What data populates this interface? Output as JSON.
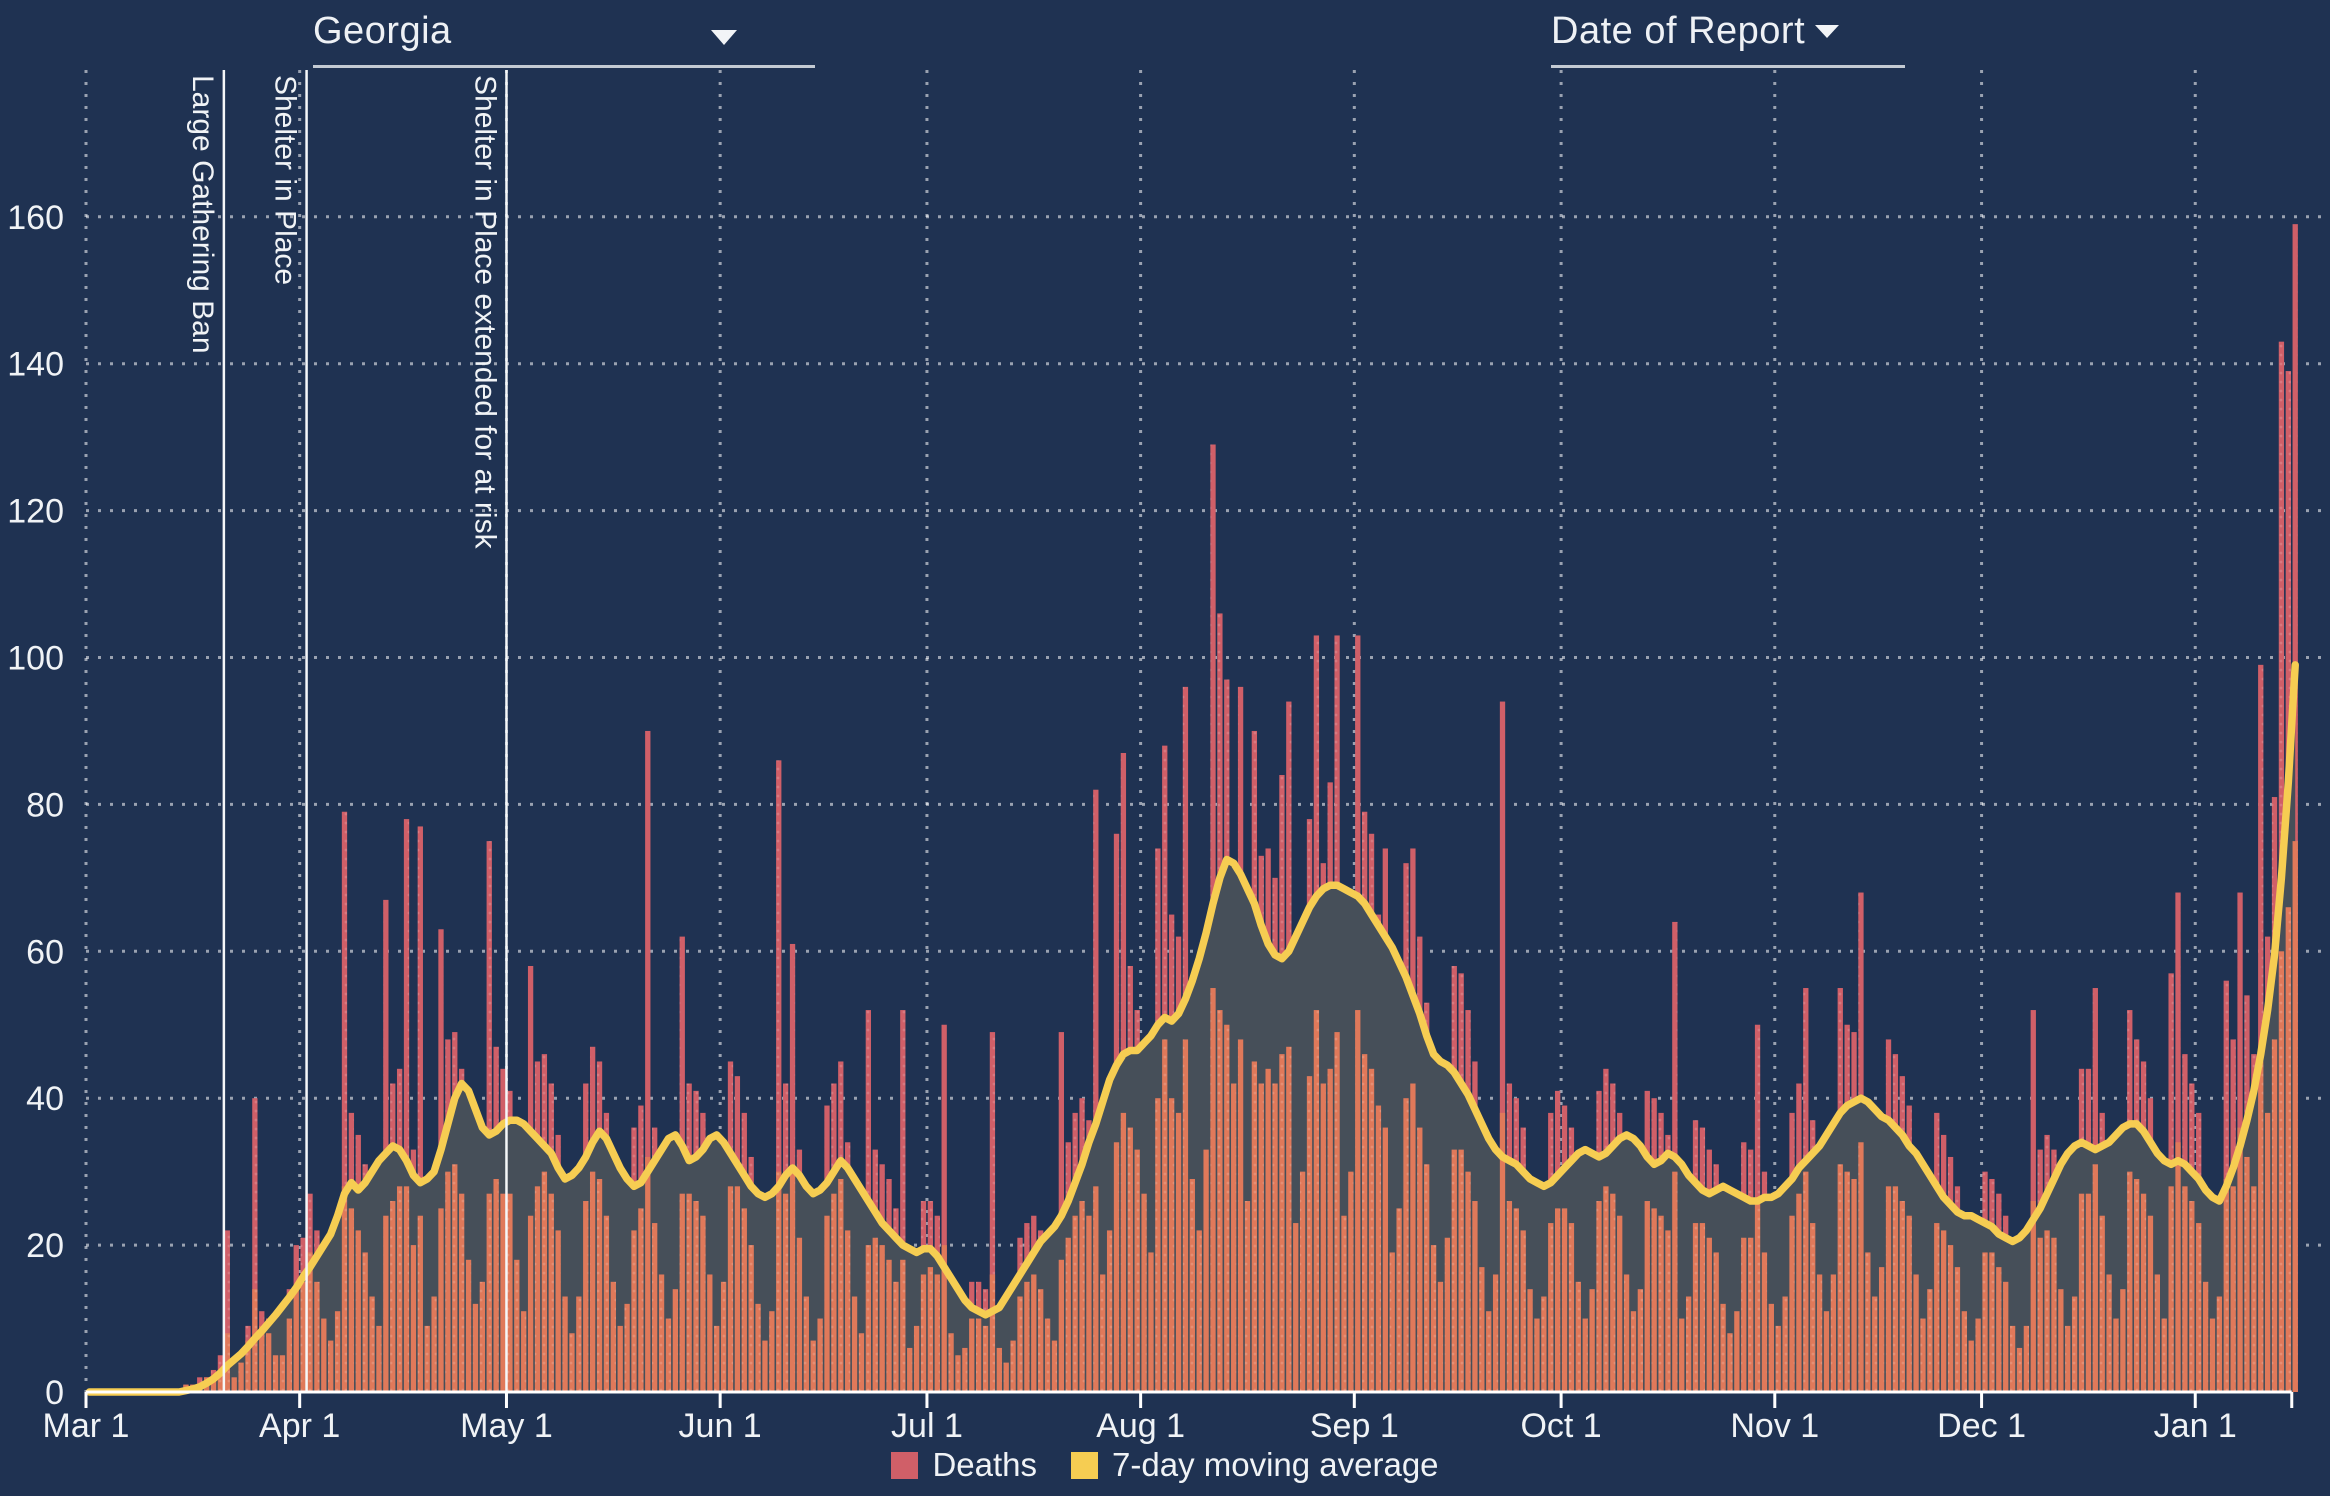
{
  "header": {
    "region_selector": {
      "value": "Georgia"
    },
    "sort_selector": {
      "label": "Date of Report"
    }
  },
  "legend": [
    {
      "label": "Deaths",
      "color": "#d05f68"
    },
    {
      "label": "7-day moving average",
      "color": "#f6cd52"
    }
  ],
  "colors": {
    "background": "#1f3252",
    "deaths_bar": "#d05f68",
    "foreground_bar": "#e0795a",
    "ma_line": "#f6cd52",
    "ma_area": "#464f59",
    "gridline": "rgba(255,255,255,0.55)",
    "event_line": "#f5f7f9",
    "text": "#f0f3f6"
  },
  "chart_data": {
    "type": "bar",
    "title": "",
    "xlabel": "",
    "ylabel": "",
    "start_date": "2020-03-01",
    "end_date": "2021-01-15",
    "grid": true,
    "legend_position": "bottom",
    "ylim": [
      0,
      180
    ],
    "y_ticks": [
      0,
      20,
      40,
      60,
      80,
      100,
      120,
      140,
      160
    ],
    "x_ticks": [
      {
        "label": "Mar 1",
        "day": 0
      },
      {
        "label": "Apr 1",
        "day": 31
      },
      {
        "label": "May 1",
        "day": 61
      },
      {
        "label": "Jun 1",
        "day": 92
      },
      {
        "label": "Jul 1",
        "day": 122
      },
      {
        "label": "Aug 1",
        "day": 153
      },
      {
        "label": "Sep 1",
        "day": 184
      },
      {
        "label": "Oct 1",
        "day": 214
      },
      {
        "label": "Nov 1",
        "day": 245
      },
      {
        "label": "Dec 1",
        "day": 275
      },
      {
        "label": "Jan 1",
        "day": 306
      }
    ],
    "x_axis_end_day": 320,
    "annotations": [
      {
        "label": "Large Gathering Ban",
        "day": 20
      },
      {
        "label": "Shelter in Place",
        "day": 32
      },
      {
        "label": "Shelter in Place extended for at risk",
        "day": 61
      }
    ],
    "series": [
      {
        "name": "Deaths",
        "type": "bar",
        "color": "#d05f68",
        "values": [
          0,
          0,
          0,
          0,
          0,
          0,
          0,
          0,
          0,
          0,
          0,
          0,
          0,
          0,
          1,
          1,
          2,
          2,
          3,
          5,
          22,
          3,
          5,
          9,
          40,
          11,
          10,
          7,
          6,
          14,
          20,
          21,
          27,
          22,
          16,
          12,
          17,
          79,
          38,
          35,
          31,
          24,
          18,
          67,
          42,
          44,
          78,
          33,
          77,
          15,
          21,
          63,
          48,
          49,
          44,
          32,
          22,
          26,
          75,
          47,
          44,
          41,
          28,
          19,
          58,
          45,
          46,
          42,
          35,
          22,
          15,
          22,
          42,
          47,
          45,
          38,
          25,
          16,
          20,
          36,
          39,
          90,
          36,
          26,
          18,
          24,
          62,
          42,
          41,
          38,
          27,
          17,
          24,
          45,
          43,
          38,
          32,
          20,
          13,
          18,
          86,
          42,
          61,
          33,
          21,
          13,
          17,
          39,
          42,
          45,
          34,
          22,
          14,
          52,
          33,
          31,
          29,
          25,
          52,
          10,
          14,
          26,
          26,
          24,
          50,
          12,
          8,
          10,
          15,
          15,
          14,
          49,
          9,
          7,
          11,
          21,
          23,
          24,
          22,
          16,
          11,
          49,
          34,
          38,
          40,
          37,
          82,
          25,
          34,
          76,
          87,
          58,
          52,
          41,
          30,
          74,
          88,
          65,
          62,
          96,
          46,
          36,
          55,
          129,
          106,
          97,
          71,
          96,
          44,
          90,
          73,
          74,
          70,
          84,
          94,
          39,
          52,
          78,
          103,
          72,
          83,
          103,
          41,
          54,
          103,
          79,
          76,
          65,
          74,
          32,
          41,
          72,
          74,
          62,
          53,
          34,
          25,
          35,
          58,
          57,
          52,
          45,
          28,
          19,
          26,
          94,
          42,
          40,
          36,
          23,
          16,
          22,
          38,
          41,
          39,
          36,
          25,
          17,
          23,
          41,
          44,
          42,
          38,
          26,
          18,
          24,
          41,
          40,
          38,
          35,
          64,
          16,
          21,
          37,
          36,
          33,
          31,
          20,
          14,
          19,
          34,
          33,
          50,
          30,
          20,
          15,
          21,
          38,
          42,
          55,
          37,
          26,
          18,
          26,
          55,
          50,
          49,
          68,
          31,
          21,
          28,
          48,
          46,
          43,
          39,
          26,
          17,
          23,
          38,
          35,
          32,
          28,
          18,
          12,
          17,
          30,
          29,
          27,
          24,
          15,
          10,
          15,
          52,
          33,
          35,
          33,
          22,
          15,
          22,
          44,
          44,
          55,
          38,
          25,
          17,
          24,
          52,
          48,
          45,
          40,
          26,
          17,
          57,
          68,
          46,
          42,
          38,
          25,
          16,
          22,
          56,
          48,
          68,
          54,
          46,
          99,
          62,
          81,
          143,
          139,
          159
        ]
      },
      {
        "name": "Deaths (lower foreground bar segments)",
        "type": "bar",
        "color": "#e0795a",
        "values": [
          0,
          0,
          0,
          0,
          0,
          0,
          0,
          0,
          0,
          0,
          0,
          0,
          0,
          0,
          1,
          1,
          1,
          2,
          2,
          3,
          8,
          2,
          4,
          7,
          14,
          9,
          8,
          5,
          5,
          10,
          14,
          15,
          19,
          15,
          10,
          7,
          11,
          28,
          25,
          22,
          19,
          13,
          9,
          24,
          26,
          28,
          28,
          20,
          24,
          9,
          13,
          25,
          30,
          31,
          27,
          18,
          12,
          15,
          27,
          29,
          27,
          27,
          18,
          11,
          24,
          28,
          30,
          27,
          22,
          13,
          8,
          13,
          26,
          30,
          29,
          24,
          15,
          9,
          12,
          22,
          25,
          32,
          23,
          16,
          10,
          14,
          27,
          27,
          26,
          24,
          16,
          9,
          15,
          28,
          28,
          25,
          20,
          12,
          7,
          11,
          30,
          27,
          30,
          21,
          13,
          7,
          10,
          24,
          27,
          29,
          22,
          13,
          8,
          20,
          21,
          20,
          18,
          15,
          18,
          6,
          9,
          16,
          17,
          16,
          20,
          8,
          5,
          6,
          10,
          10,
          9,
          16,
          6,
          4,
          7,
          13,
          15,
          16,
          14,
          10,
          7,
          18,
          21,
          24,
          26,
          24,
          28,
          16,
          22,
          34,
          38,
          36,
          33,
          27,
          19,
          40,
          48,
          40,
          38,
          48,
          29,
          22,
          33,
          55,
          52,
          50,
          42,
          48,
          26,
          45,
          42,
          44,
          42,
          46,
          47,
          23,
          30,
          43,
          52,
          42,
          44,
          49,
          24,
          30,
          52,
          46,
          44,
          39,
          36,
          19,
          25,
          40,
          42,
          36,
          31,
          20,
          15,
          21,
          33,
          33,
          30,
          26,
          17,
          11,
          16,
          38,
          26,
          25,
          22,
          14,
          10,
          13,
          23,
          25,
          25,
          23,
          15,
          10,
          14,
          26,
          28,
          27,
          24,
          16,
          11,
          14,
          26,
          25,
          24,
          22,
          30,
          10,
          13,
          23,
          23,
          21,
          19,
          12,
          8,
          11,
          21,
          21,
          26,
          19,
          12,
          9,
          13,
          24,
          27,
          30,
          23,
          16,
          11,
          16,
          31,
          30,
          29,
          34,
          19,
          13,
          17,
          28,
          28,
          26,
          24,
          16,
          10,
          14,
          23,
          22,
          20,
          17,
          11,
          7,
          10,
          19,
          19,
          17,
          15,
          9,
          6,
          9,
          26,
          21,
          22,
          21,
          14,
          9,
          13,
          27,
          27,
          31,
          24,
          16,
          10,
          14,
          30,
          29,
          27,
          24,
          16,
          10,
          28,
          34,
          28,
          26,
          23,
          15,
          10,
          13,
          29,
          28,
          36,
          32,
          28,
          45,
          38,
          48,
          60,
          66,
          75
        ]
      },
      {
        "name": "7-day moving average",
        "type": "line",
        "color": "#f6cd52",
        "values": [
          0,
          0,
          0,
          0,
          0,
          0,
          0,
          0,
          0,
          0,
          0,
          0,
          0,
          0,
          0.2,
          0.4,
          0.7,
          1.2,
          1.8,
          2.6,
          3.6,
          4.4,
          5.2,
          6.2,
          7.3,
          8.3,
          9.4,
          10.5,
          11.7,
          12.9,
          14.2,
          15.7,
          17,
          18.5,
          20,
          21.5,
          24,
          27,
          28.5,
          27.5,
          28.5,
          30,
          31.5,
          32.5,
          33.5,
          33,
          31.5,
          29.5,
          28.5,
          29,
          30,
          33,
          36.5,
          40,
          42,
          41,
          38.5,
          36,
          35,
          35.5,
          36.5,
          37,
          37,
          36.5,
          35.5,
          34.5,
          33.5,
          32.5,
          30.5,
          29,
          29.5,
          30.5,
          32,
          34,
          35.5,
          34.5,
          32.5,
          30.5,
          29,
          28,
          28.5,
          30,
          31.5,
          33,
          34.5,
          35,
          33.5,
          31.5,
          32,
          33,
          34.5,
          35,
          34,
          32.5,
          31,
          29.5,
          28,
          27,
          26.5,
          27,
          28,
          29.5,
          30.5,
          29.5,
          28,
          27,
          27.5,
          28.5,
          30,
          31.5,
          30.5,
          29,
          27.5,
          26,
          24.5,
          23,
          22,
          21,
          20,
          19.5,
          19,
          19.5,
          19.5,
          18.5,
          17,
          15.5,
          14,
          12.5,
          11.5,
          11,
          10.5,
          11,
          11.5,
          13,
          14.5,
          16,
          17.5,
          19,
          20.5,
          21.5,
          22.5,
          24,
          26,
          28.5,
          31,
          34,
          36.5,
          39.5,
          42.5,
          44.5,
          46,
          46.5,
          46.5,
          47.5,
          48.5,
          50,
          51,
          50.5,
          51.5,
          53.5,
          56,
          59,
          62.5,
          66.5,
          70,
          72.5,
          72,
          70.5,
          68.5,
          66.5,
          63.5,
          61,
          59.5,
          59,
          60,
          62,
          64,
          66,
          67.5,
          68.5,
          69,
          69,
          68.5,
          68,
          67.5,
          66.5,
          65,
          63.5,
          62,
          60.5,
          58.5,
          56.5,
          54,
          51.5,
          48.5,
          46,
          45,
          44.5,
          43.5,
          42,
          40.5,
          38.5,
          36.5,
          34.5,
          33,
          32,
          31.5,
          31,
          30,
          29,
          28.5,
          28,
          28.5,
          29.5,
          30.5,
          31.5,
          32.5,
          33,
          32.5,
          32,
          32.5,
          33.5,
          34.5,
          35,
          34.5,
          33.5,
          32,
          31,
          31.5,
          32.5,
          32,
          31,
          29.5,
          28.5,
          27.5,
          27,
          27.5,
          28,
          27.5,
          27,
          26.5,
          26,
          26,
          26.5,
          26.5,
          27,
          28,
          29,
          30.5,
          31.5,
          32.5,
          33.5,
          35,
          36.5,
          38,
          39,
          39.5,
          40,
          39.5,
          38.5,
          37.5,
          37,
          36,
          35,
          33.5,
          32.5,
          31,
          29.5,
          28,
          26.5,
          25.5,
          24.5,
          24,
          24,
          23.5,
          23,
          22.5,
          21.5,
          21,
          20.5,
          21,
          22,
          23.5,
          25,
          27,
          29,
          31,
          32.5,
          33.5,
          34,
          33.5,
          33,
          33.5,
          34,
          35,
          36,
          36.5,
          36.5,
          35.5,
          34,
          32.5,
          31.5,
          31,
          31.5,
          31,
          30,
          29,
          27.5,
          26.5,
          26,
          28,
          30.5,
          33.5,
          37,
          41,
          46,
          52,
          59.5,
          70,
          83,
          99
        ]
      }
    ]
  }
}
